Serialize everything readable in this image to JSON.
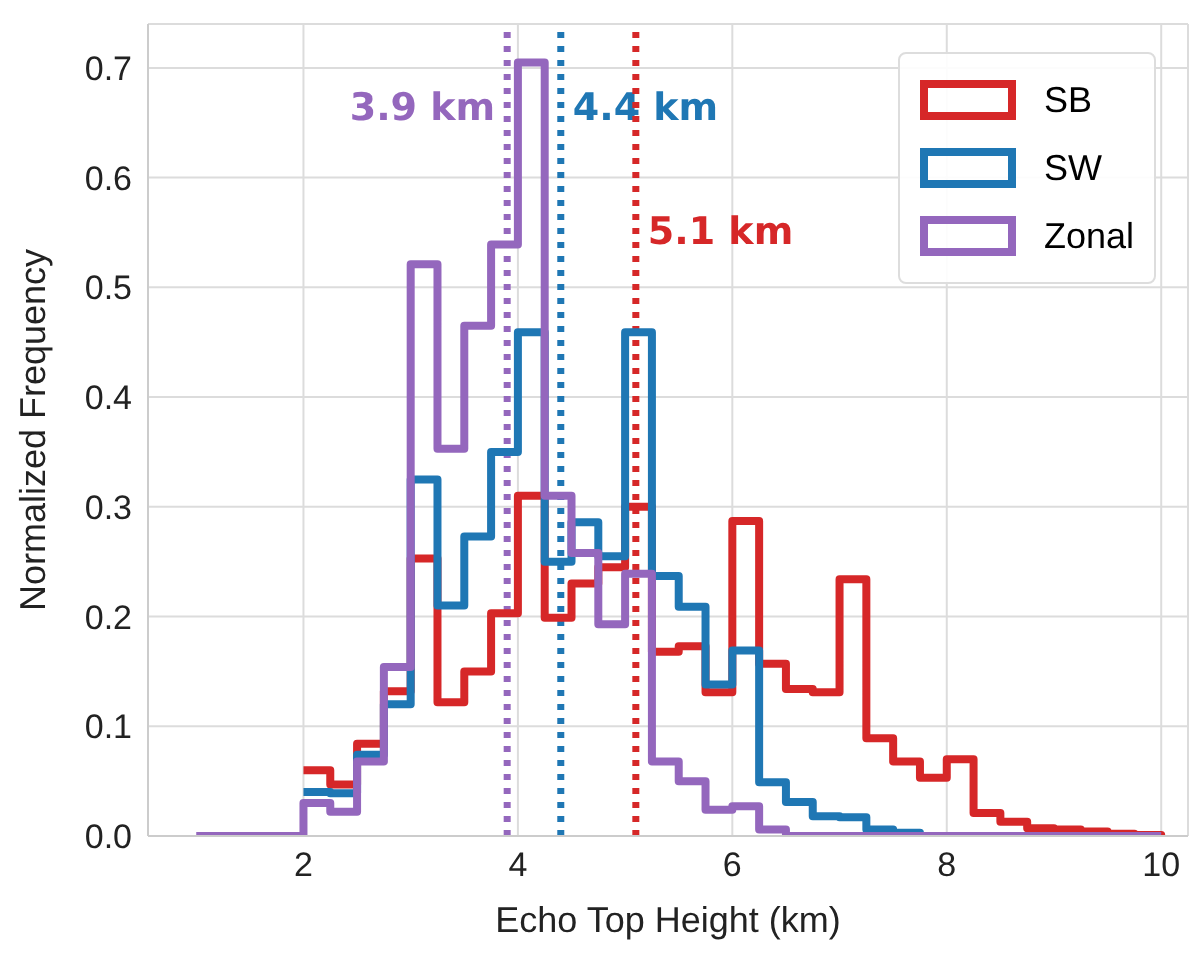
{
  "chart_data": {
    "type": "step",
    "xlabel": "Echo Top Height (km)",
    "ylabel": "Normalized Frequency",
    "x": [
      1,
      1.25,
      1.5,
      1.75,
      2,
      2.25,
      2.5,
      2.75,
      3,
      3.25,
      3.5,
      3.75,
      4,
      4.25,
      4.5,
      4.75,
      5,
      5.25,
      5.5,
      5.75,
      6,
      6.25,
      6.5,
      6.75,
      7,
      7.25,
      7.5,
      7.75,
      8,
      8.25,
      8.5,
      8.75,
      9,
      9.25,
      9.5,
      9.75,
      10
    ],
    "series": [
      {
        "name": "SB",
        "color": "#d62728",
        "values": [
          null,
          null,
          null,
          null,
          0.06,
          0.047,
          0.084,
          0.132,
          0.253,
          0.122,
          0.15,
          0.203,
          0.31,
          0.199,
          0.23,
          0.245,
          0.3,
          0.168,
          0.173,
          0.131,
          0.287,
          0.157,
          0.134,
          0.131,
          0.234,
          0.089,
          0.068,
          0.053,
          0.07,
          0.021,
          0.013,
          0.007,
          0.006,
          0.004,
          0.002,
          0.001,
          0
        ]
      },
      {
        "name": "SW",
        "color": "#1f77b4",
        "values": [
          null,
          null,
          null,
          null,
          0.04,
          0.039,
          0.074,
          0.12,
          0.325,
          0.21,
          0.273,
          0.35,
          0.459,
          0.25,
          0.286,
          0.255,
          0.459,
          0.237,
          0.209,
          0.138,
          0.169,
          0.049,
          0.031,
          0.018,
          0.017,
          0.006,
          0.003,
          0.002,
          null,
          null,
          null,
          null,
          null,
          null,
          null,
          null,
          null
        ]
      },
      {
        "name": "Zonal",
        "color": "#9467bd",
        "values": [
          0,
          0,
          0,
          0,
          0.03,
          0.022,
          0.068,
          0.154,
          0.521,
          0.353,
          0.465,
          0.539,
          0.705,
          0.31,
          0.258,
          0.193,
          0.239,
          0.068,
          0.05,
          0.024,
          0.027,
          0.006,
          0,
          0,
          0,
          0,
          0,
          0,
          0,
          0,
          0,
          0,
          0,
          0,
          0,
          0,
          0
        ]
      }
    ],
    "xlim": [
      0.55,
      10.25
    ],
    "xticks": [
      2,
      4,
      6,
      8,
      10
    ],
    "ylim": [
      0,
      0.74
    ],
    "yticks": [
      {
        "value": 0,
        "label": "0.0"
      },
      0.1,
      0.2,
      0.3,
      0.4,
      0.5,
      0.6,
      0.7
    ],
    "ref_lines": [
      {
        "axis": "x",
        "value": 3.9,
        "label": "3.9 km",
        "color": "#9467bd",
        "line_style": "dotted"
      },
      {
        "axis": "x",
        "value": 4.4,
        "label": "4.4 km",
        "color": "#1f77b4",
        "line_style": "dotted"
      },
      {
        "axis": "x",
        "value": 5.1,
        "label": "5.1 km",
        "color": "#d62728",
        "line_style": "dotted"
      }
    ],
    "grid": true,
    "legend": "top right",
    "line_style": "solid",
    "marker": "none"
  }
}
